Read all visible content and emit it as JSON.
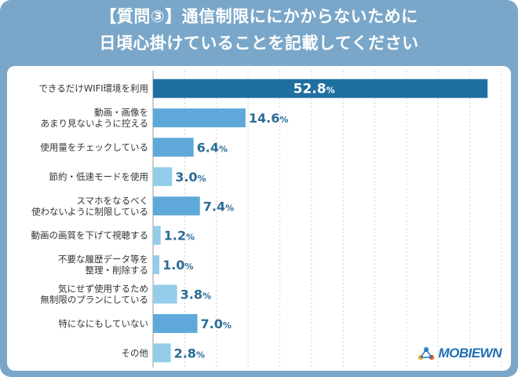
{
  "title": {
    "line1": "【質問③】通信制限ににかからないために",
    "line2": "日頃心掛けていることを記載してください"
  },
  "colors": {
    "frame": "#7aa7c9",
    "bar_top": "#1f6fa0",
    "bar_mid": "#5ea9d9",
    "bar_light": "#93cde9",
    "value_text": "#2a6b97",
    "grid": "#d0d0d0"
  },
  "chart_data": {
    "type": "bar",
    "orientation": "horizontal",
    "unit": "%",
    "xlim": [
      0,
      55
    ],
    "categories": [
      [
        "できるだけWIFI環境を利用"
      ],
      [
        "動画・画像を",
        "あまり見ないように控える"
      ],
      [
        "使用量をチェックしている"
      ],
      [
        "節約・低速モードを使用"
      ],
      [
        "スマホをなるべく",
        "使わないように制限している"
      ],
      [
        "動画の画質を下げて視聴する"
      ],
      [
        "不要な履歴データ等を",
        "整理・削除する"
      ],
      [
        "気にせず使用するため",
        "無制限のプランにしている"
      ],
      [
        "特になにもしていない"
      ],
      [
        "その他"
      ]
    ],
    "values": [
      52.8,
      14.6,
      6.4,
      3.0,
      7.4,
      1.2,
      1.0,
      3.8,
      7.0,
      2.8
    ],
    "labels": [
      "52.8",
      "14.6",
      "6.4",
      "3.0",
      "7.4",
      "1.2",
      "1.0",
      "3.8",
      "7.0",
      "2.8"
    ]
  },
  "logo": {
    "text": "MOBIEWN",
    "icon": "people-network-icon"
  }
}
